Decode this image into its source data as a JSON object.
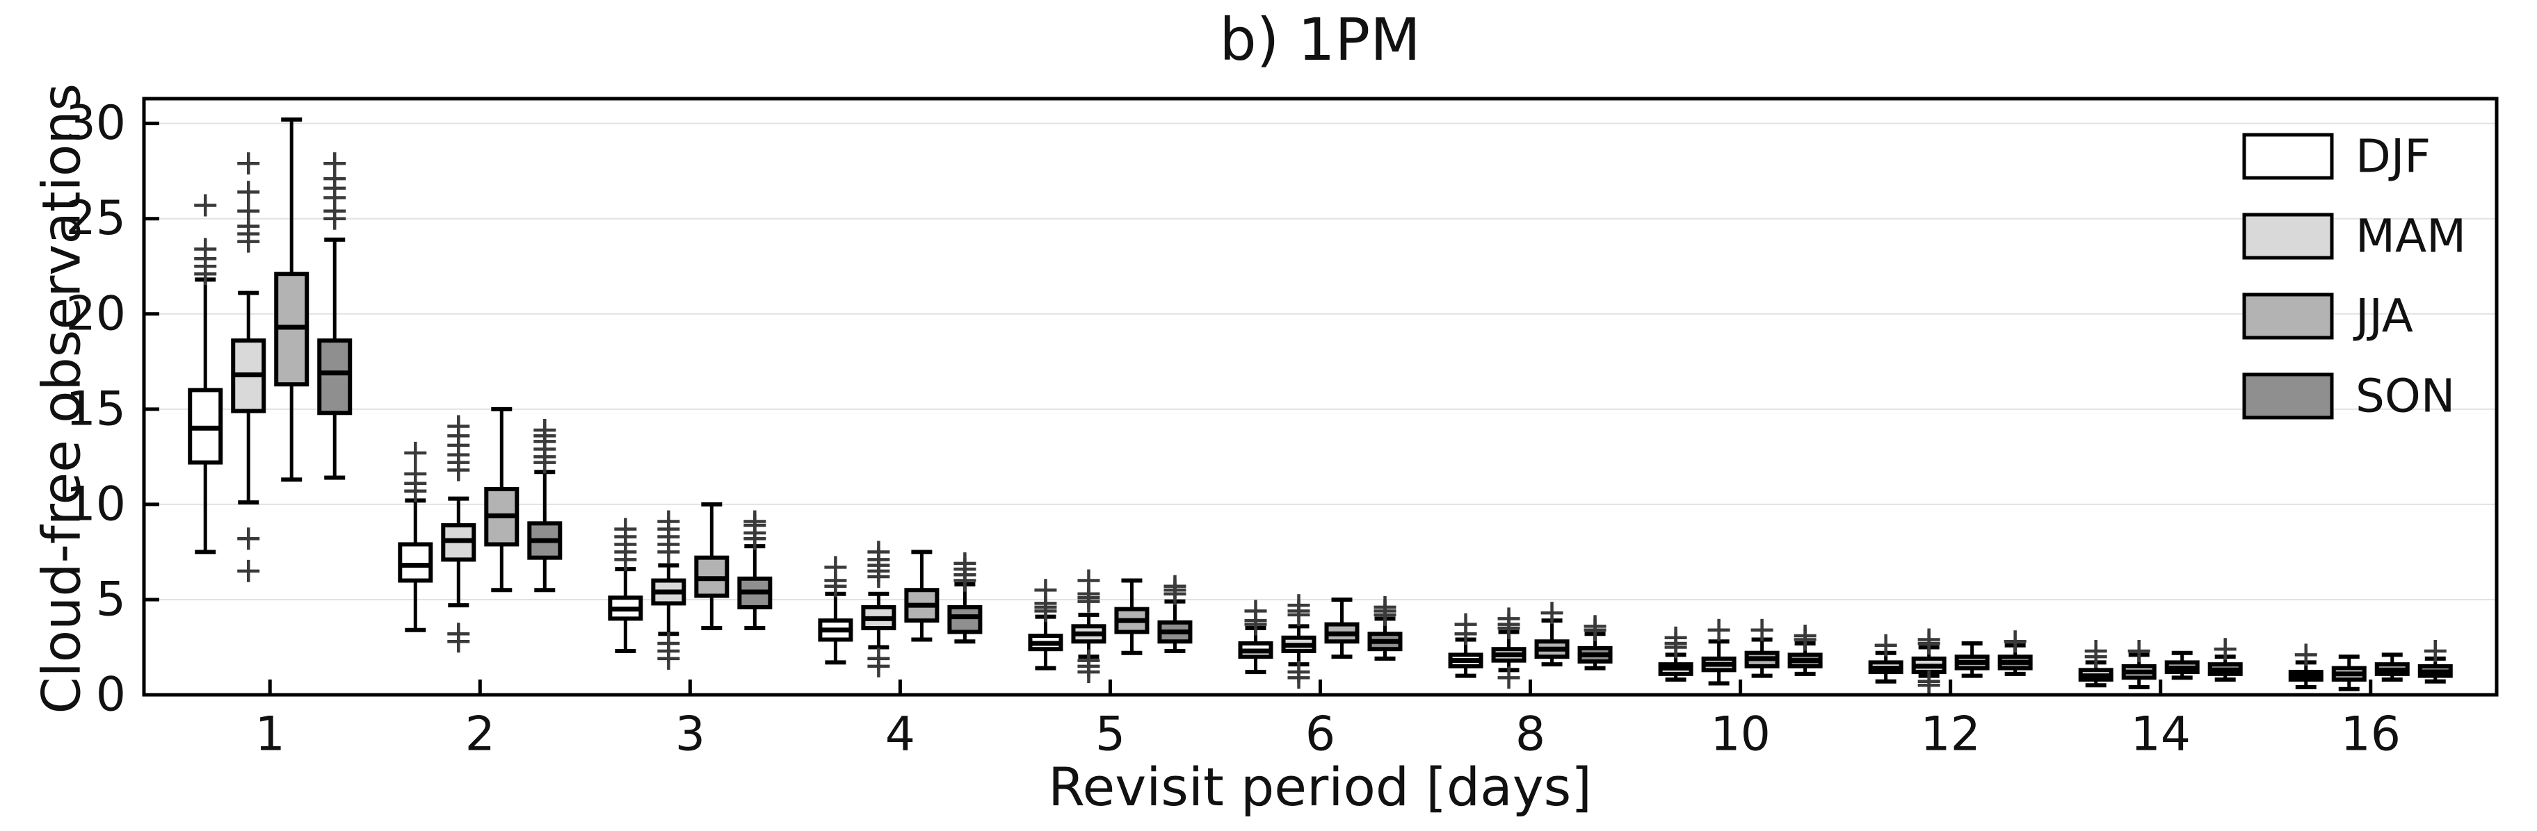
{
  "chart_data": {
    "type": "boxplot",
    "title": "b) 1PM",
    "xlabel": "Revisit period [days]",
    "ylabel": "Cloud-free observations",
    "categories": [
      "1",
      "2",
      "3",
      "4",
      "5",
      "6",
      "8",
      "10",
      "12",
      "14",
      "16"
    ],
    "ylim": [
      0,
      31.3
    ],
    "yticks": [
      0,
      5,
      10,
      15,
      20,
      25,
      30
    ],
    "grid": "horizontal",
    "gridline_color": "#e2e2e2",
    "frame_color": "#000000",
    "outlier_color": "#3a3a3a",
    "legend_position": "upper right",
    "series": [
      {
        "name": "DJF",
        "color": "#ffffff",
        "boxes": [
          {
            "lo": 7.5,
            "q1": 12.2,
            "med": 14.0,
            "q3": 16.0,
            "hi": 21.8,
            "out_hi": [
              22.1,
              22.5,
              22.9,
              23.4,
              25.7
            ],
            "out_lo": []
          },
          {
            "lo": 3.4,
            "q1": 6.0,
            "med": 6.8,
            "q3": 7.9,
            "hi": 10.2,
            "out_hi": [
              10.7,
              11.1,
              11.6,
              12.7
            ],
            "out_lo": []
          },
          {
            "lo": 2.3,
            "q1": 4.0,
            "med": 4.5,
            "q3": 5.1,
            "hi": 6.6,
            "out_hi": [
              7.1,
              7.5,
              7.9,
              8.3,
              8.7
            ],
            "out_lo": []
          },
          {
            "lo": 1.7,
            "q1": 2.9,
            "med": 3.4,
            "q3": 3.9,
            "hi": 5.3,
            "out_hi": [
              5.7,
              6.0,
              6.7
            ],
            "out_lo": []
          },
          {
            "lo": 1.4,
            "q1": 2.4,
            "med": 2.7,
            "q3": 3.1,
            "hi": 4.1,
            "out_hi": [
              4.4,
              4.6,
              4.8,
              5.5
            ],
            "out_lo": []
          },
          {
            "lo": 1.2,
            "q1": 2.0,
            "med": 2.3,
            "q3": 2.7,
            "hi": 3.5,
            "out_hi": [
              3.7,
              3.9,
              4.4
            ],
            "out_lo": []
          },
          {
            "lo": 1.0,
            "q1": 1.5,
            "med": 1.8,
            "q3": 2.1,
            "hi": 2.9,
            "out_hi": [
              3.2,
              3.7
            ],
            "out_lo": []
          },
          {
            "lo": 0.8,
            "q1": 1.1,
            "med": 1.4,
            "q3": 1.6,
            "hi": 2.1,
            "out_hi": [
              2.5,
              2.7,
              3.0
            ],
            "out_lo": []
          },
          {
            "lo": 0.7,
            "q1": 1.2,
            "med": 1.4,
            "q3": 1.7,
            "hi": 2.2,
            "out_hi": [
              2.6
            ],
            "out_lo": []
          },
          {
            "lo": 0.5,
            "q1": 0.8,
            "med": 1.0,
            "q3": 1.3,
            "hi": 1.7,
            "out_hi": [
              2.0,
              2.3
            ],
            "out_lo": []
          },
          {
            "lo": 0.4,
            "q1": 0.8,
            "med": 1.0,
            "q3": 1.2,
            "hi": 1.7,
            "out_hi": [
              2.1
            ],
            "out_lo": []
          }
        ]
      },
      {
        "name": "MAM",
        "color": "#d9d9d9",
        "boxes": [
          {
            "lo": 10.1,
            "q1": 14.9,
            "med": 16.8,
            "q3": 18.6,
            "hi": 21.1,
            "out_hi": [
              23.8,
              24.2,
              24.6,
              25.4,
              26.4,
              27.9
            ],
            "out_lo": [
              6.5,
              8.2
            ]
          },
          {
            "lo": 4.7,
            "q1": 7.1,
            "med": 8.1,
            "q3": 8.9,
            "hi": 10.3,
            "out_hi": [
              11.8,
              12.2,
              12.6,
              13.1,
              13.6,
              14.1
            ],
            "out_lo": [
              2.8,
              3.2
            ]
          },
          {
            "lo": 3.2,
            "q1": 4.8,
            "med": 5.4,
            "q3": 6.0,
            "hi": 6.8,
            "out_hi": [
              7.5,
              7.9,
              8.3,
              8.7,
              9.1
            ],
            "out_lo": [
              1.9,
              2.3,
              2.7
            ]
          },
          {
            "lo": 2.5,
            "q1": 3.5,
            "med": 4.0,
            "q3": 4.6,
            "hi": 5.3,
            "out_hi": [
              6.2,
              6.5,
              6.8,
              7.1,
              7.5
            ],
            "out_lo": [
              1.5,
              1.9
            ]
          },
          {
            "lo": 2.0,
            "q1": 2.8,
            "med": 3.2,
            "q3": 3.6,
            "hi": 4.2,
            "out_hi": [
              4.9,
              5.1,
              5.3,
              6.0
            ],
            "out_lo": [
              1.2,
              1.5,
              1.8
            ]
          },
          {
            "lo": 1.6,
            "q1": 2.3,
            "med": 2.6,
            "q3": 3.0,
            "hi": 3.6,
            "out_hi": [
              4.2,
              4.4,
              4.7
            ],
            "out_lo": [
              0.9,
              1.2
            ]
          },
          {
            "lo": 1.3,
            "q1": 1.8,
            "med": 2.1,
            "q3": 2.4,
            "hi": 3.3,
            "out_hi": [
              3.5,
              3.7,
              4.0
            ],
            "out_lo": [
              0.9
            ]
          },
          {
            "lo": 0.6,
            "q1": 1.3,
            "med": 1.6,
            "q3": 1.9,
            "hi": 2.8,
            "out_hi": [
              3.4
            ],
            "out_lo": []
          },
          {
            "lo": 1.0,
            "q1": 1.2,
            "med": 1.5,
            "q3": 1.9,
            "hi": 2.5,
            "out_hi": [
              2.7,
              2.9
            ],
            "out_lo": [
              0.5,
              0.7
            ]
          },
          {
            "lo": 0.4,
            "q1": 0.9,
            "med": 1.2,
            "q3": 1.5,
            "hi": 2.1,
            "out_hi": [
              2.3
            ],
            "out_lo": []
          },
          {
            "lo": 0.3,
            "q1": 0.8,
            "med": 1.1,
            "q3": 1.4,
            "hi": 2.0,
            "out_hi": [],
            "out_lo": []
          }
        ]
      },
      {
        "name": "JJA",
        "color": "#b3b3b3",
        "boxes": [
          {
            "lo": 11.3,
            "q1": 16.3,
            "med": 19.3,
            "q3": 22.1,
            "hi": 30.2,
            "out_hi": [],
            "out_lo": []
          },
          {
            "lo": 5.5,
            "q1": 7.9,
            "med": 9.4,
            "q3": 10.8,
            "hi": 15.0,
            "out_hi": [],
            "out_lo": []
          },
          {
            "lo": 3.5,
            "q1": 5.2,
            "med": 6.1,
            "q3": 7.2,
            "hi": 10.0,
            "out_hi": [],
            "out_lo": []
          },
          {
            "lo": 2.9,
            "q1": 3.9,
            "med": 4.7,
            "q3": 5.5,
            "hi": 7.5,
            "out_hi": [],
            "out_lo": []
          },
          {
            "lo": 2.2,
            "q1": 3.3,
            "med": 3.9,
            "q3": 4.5,
            "hi": 6.0,
            "out_hi": [],
            "out_lo": []
          },
          {
            "lo": 2.0,
            "q1": 2.8,
            "med": 3.2,
            "q3": 3.7,
            "hi": 5.0,
            "out_hi": [],
            "out_lo": []
          },
          {
            "lo": 1.6,
            "q1": 2.0,
            "med": 2.4,
            "q3": 2.8,
            "hi": 3.9,
            "out_hi": [
              4.3
            ],
            "out_lo": []
          },
          {
            "lo": 1.0,
            "q1": 1.5,
            "med": 1.9,
            "q3": 2.2,
            "hi": 2.9,
            "out_hi": [
              3.4
            ],
            "out_lo": []
          },
          {
            "lo": 1.0,
            "q1": 1.4,
            "med": 1.7,
            "q3": 2.0,
            "hi": 2.7,
            "out_hi": [],
            "out_lo": []
          },
          {
            "lo": 0.9,
            "q1": 1.2,
            "med": 1.4,
            "q3": 1.7,
            "hi": 2.2,
            "out_hi": [],
            "out_lo": []
          },
          {
            "lo": 0.8,
            "q1": 1.1,
            "med": 1.3,
            "q3": 1.6,
            "hi": 2.1,
            "out_hi": [],
            "out_lo": []
          }
        ]
      },
      {
        "name": "SON",
        "color": "#8f8f8f",
        "boxes": [
          {
            "lo": 11.4,
            "q1": 14.8,
            "med": 16.9,
            "q3": 18.6,
            "hi": 23.9,
            "out_hi": [
              25.0,
              25.4,
              26.1,
              26.6,
              27.1,
              27.9
            ],
            "out_lo": []
          },
          {
            "lo": 5.5,
            "q1": 7.2,
            "med": 8.1,
            "q3": 9.0,
            "hi": 11.7,
            "out_hi": [
              12.2,
              12.5,
              12.9,
              13.3,
              13.6,
              13.9
            ],
            "out_lo": []
          },
          {
            "lo": 3.5,
            "q1": 4.6,
            "med": 5.4,
            "q3": 6.1,
            "hi": 7.8,
            "out_hi": [
              8.2,
              8.5,
              8.9,
              9.1
            ],
            "out_lo": []
          },
          {
            "lo": 2.8,
            "q1": 3.3,
            "med": 4.1,
            "q3": 4.6,
            "hi": 5.8,
            "out_hi": [
              6.0,
              6.3,
              6.6,
              6.9
            ],
            "out_lo": []
          },
          {
            "lo": 2.3,
            "q1": 2.8,
            "med": 3.3,
            "q3": 3.8,
            "hi": 4.9,
            "out_hi": [
              5.3,
              5.5,
              5.7
            ],
            "out_lo": []
          },
          {
            "lo": 1.9,
            "q1": 2.4,
            "med": 2.8,
            "q3": 3.2,
            "hi": 4.0,
            "out_hi": [
              4.2,
              4.4,
              4.6
            ],
            "out_lo": []
          },
          {
            "lo": 1.4,
            "q1": 1.75,
            "med": 2.1,
            "q3": 2.45,
            "hi": 3.2,
            "out_hi": [
              3.4,
              3.6
            ],
            "out_lo": []
          },
          {
            "lo": 1.1,
            "q1": 1.5,
            "med": 1.8,
            "q3": 2.1,
            "hi": 2.7,
            "out_hi": [
              2.9,
              3.1
            ],
            "out_lo": []
          },
          {
            "lo": 1.1,
            "q1": 1.4,
            "med": 1.7,
            "q3": 2.0,
            "hi": 2.6,
            "out_hi": [
              2.8
            ],
            "out_lo": []
          },
          {
            "lo": 0.8,
            "q1": 1.1,
            "med": 1.3,
            "q3": 1.6,
            "hi": 2.0,
            "out_hi": [
              2.4
            ],
            "out_lo": []
          },
          {
            "lo": 0.7,
            "q1": 1.0,
            "med": 1.2,
            "q3": 1.5,
            "hi": 1.9,
            "out_hi": [
              2.3
            ],
            "out_lo": []
          }
        ]
      }
    ]
  }
}
